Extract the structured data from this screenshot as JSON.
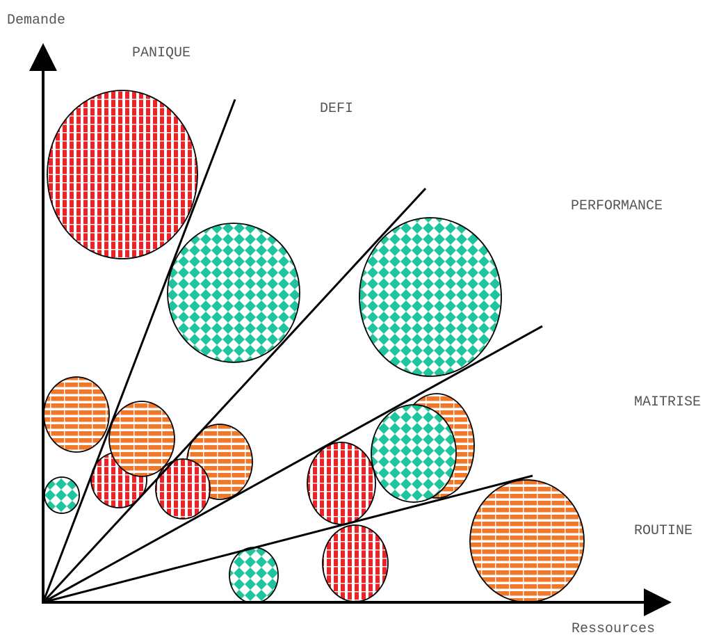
{
  "axes": {
    "y_label": "Demande",
    "x_label": "Ressources"
  },
  "zones": [
    "PANIQUE",
    "DEFI",
    "PERFORMANCE",
    "MAITRISE",
    "ROUTINE"
  ],
  "colors": {
    "red": "#e8262a",
    "teal": "#20c49a",
    "orange": "#f0782a",
    "axis": "#000000",
    "text": "#555555"
  },
  "pattern_names": {
    "red": "vertical-stripes",
    "teal": "diamond-checker",
    "orange": "horizontal-stripes"
  }
}
